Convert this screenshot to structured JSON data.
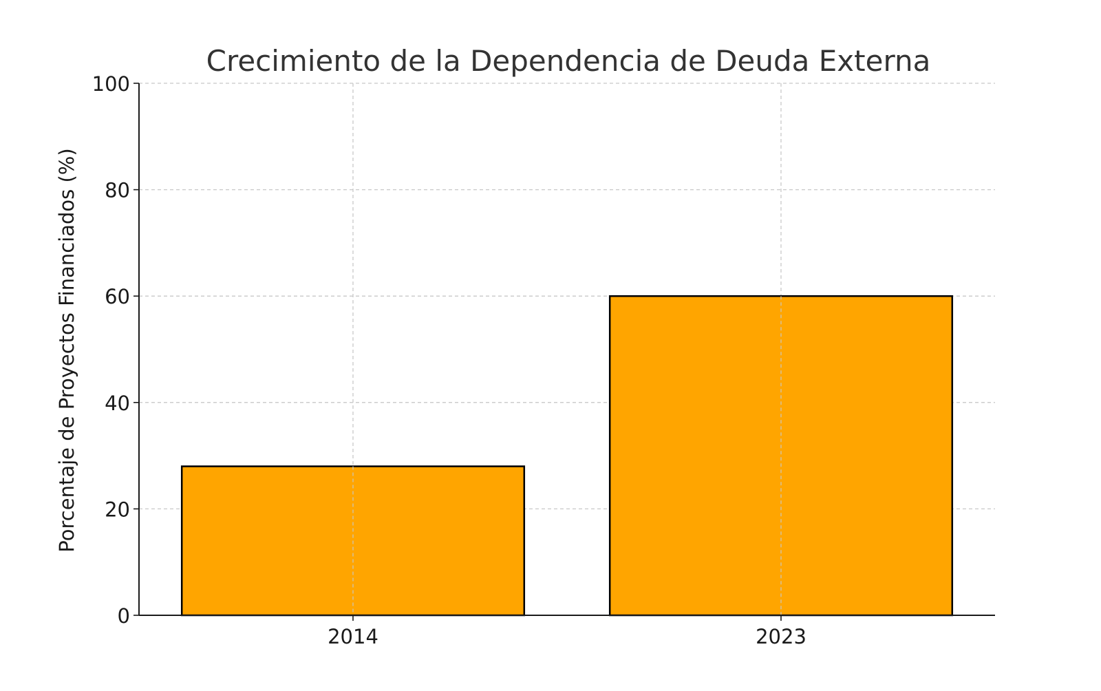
{
  "chart_data": {
    "type": "bar",
    "title": "Crecimiento de la Dependencia de Deuda Externa",
    "xlabel": "",
    "ylabel": "Porcentaje de Proyectos Financiados (%)",
    "categories": [
      "2014",
      "2023"
    ],
    "values": [
      28,
      60
    ],
    "ylim": [
      0,
      100
    ],
    "yticks": [
      0,
      20,
      40,
      60,
      80,
      100
    ],
    "grid": true,
    "bar_color": "#FFA500",
    "bar_edge_color": "#000000"
  }
}
